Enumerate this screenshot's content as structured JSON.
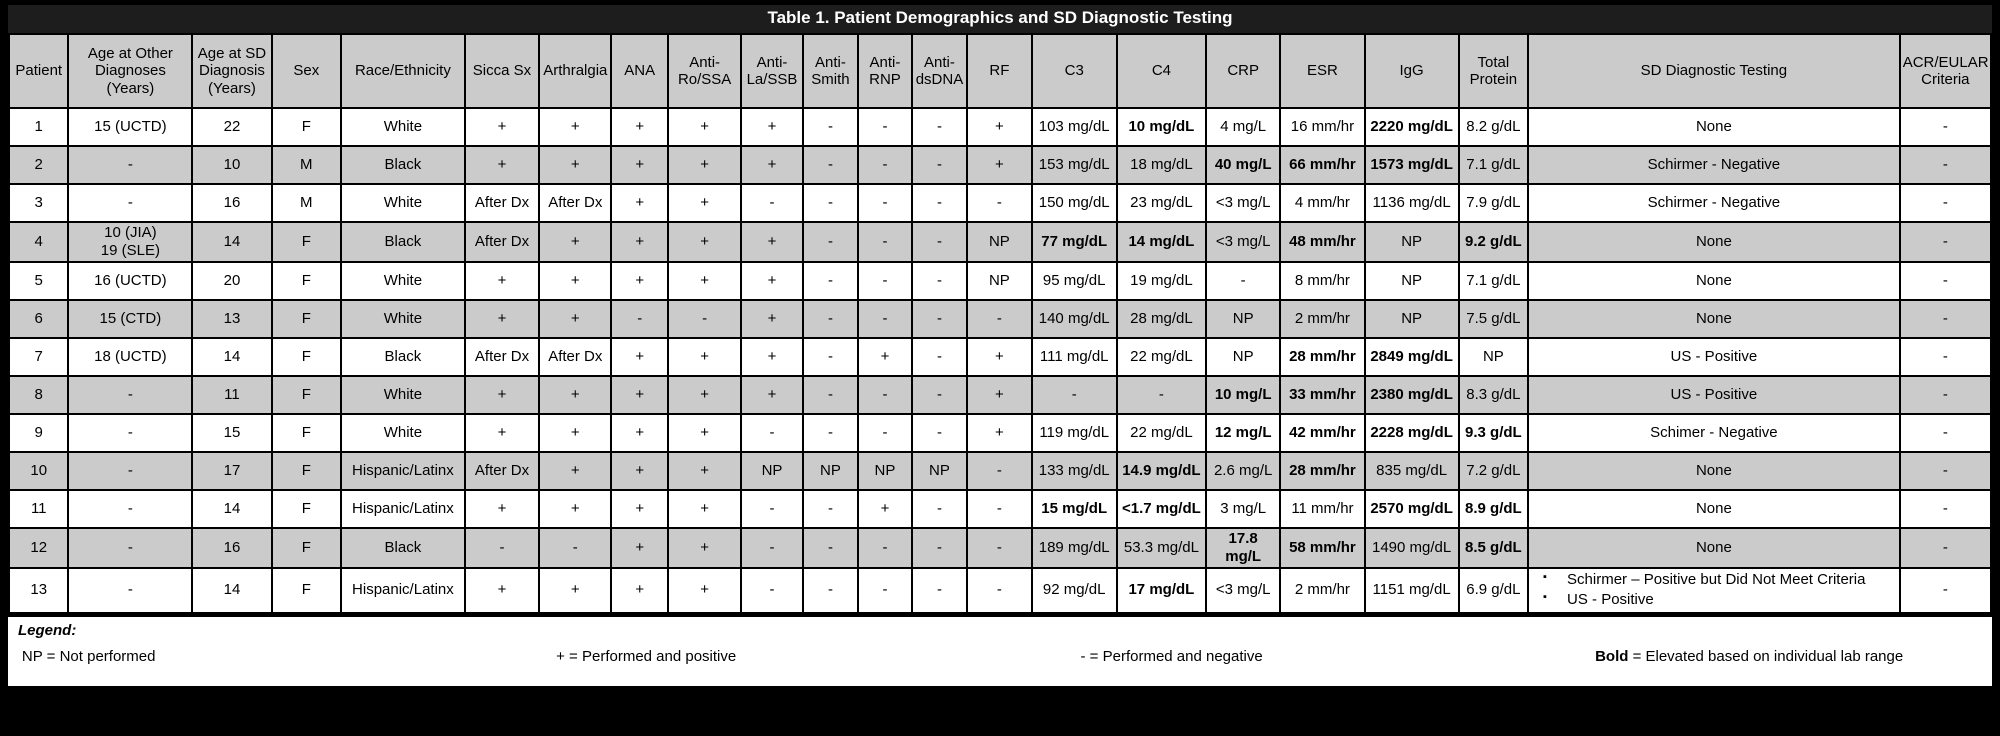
{
  "title": "Table 1. Patient Demographics and SD Diagnostic Testing",
  "table": {
    "columns": [
      {
        "key": "patient",
        "label": "Patient"
      },
      {
        "key": "age-at-other-diagnoses",
        "label": "Age at Other Diagnoses (Years)"
      },
      {
        "key": "age-at-sd-diagnosis",
        "label": "Age at SD Diagnosis (Years)"
      },
      {
        "key": "sex",
        "label": "Sex"
      },
      {
        "key": "race-ethnicity",
        "label": "Race/Ethnicity"
      },
      {
        "key": "sicca-sx",
        "label": "Sicca Sx"
      },
      {
        "key": "arthralgia",
        "label": "Arthralgia"
      },
      {
        "key": "ana",
        "label": "ANA"
      },
      {
        "key": "anti-ro-ssa",
        "label": "Anti-Ro/SSA"
      },
      {
        "key": "anti-la-ssb",
        "label": "Anti-La/SSB"
      },
      {
        "key": "anti-smith",
        "label": "Anti-Smith"
      },
      {
        "key": "anti-rnp",
        "label": "Anti-RNP"
      },
      {
        "key": "anti-dsdna",
        "label": "Anti-dsDNA"
      },
      {
        "key": "rf",
        "label": "RF"
      },
      {
        "key": "c3",
        "label": "C3"
      },
      {
        "key": "c4",
        "label": "C4"
      },
      {
        "key": "crp",
        "label": "CRP"
      },
      {
        "key": "esr",
        "label": "ESR"
      },
      {
        "key": "igg",
        "label": "IgG"
      },
      {
        "key": "total-protein",
        "label": "Total Protein"
      },
      {
        "key": "sd-diagnostic-testing",
        "label": "SD Diagnostic Testing"
      },
      {
        "key": "acr-eular-criteria",
        "label": "ACR/EULAR Criteria"
      }
    ],
    "rows": [
      {
        "shaded": false,
        "cells": [
          "1",
          "15 (UCTD)",
          "22",
          "F",
          "White",
          "+",
          "+",
          "+",
          "+",
          "+",
          "-",
          "-",
          "-",
          "+",
          "103 mg/dL",
          {
            "text": "10 mg/dL",
            "bold": true
          },
          "4 mg/L",
          "16 mm/hr",
          {
            "text": "2220 mg/dL",
            "bold": true
          },
          "8.2 g/dL",
          "None",
          "-"
        ]
      },
      {
        "shaded": true,
        "cells": [
          "2",
          "-",
          "10",
          "M",
          "Black",
          "+",
          "+",
          "+",
          "+",
          "+",
          "-",
          "-",
          "-",
          "+",
          "153 mg/dL",
          "18 mg/dL",
          {
            "text": "40 mg/L",
            "bold": true
          },
          {
            "text": "66 mm/hr",
            "bold": true
          },
          {
            "text": "1573 mg/dL",
            "bold": true
          },
          "7.1 g/dL",
          "Schirmer - Negative",
          "-"
        ]
      },
      {
        "shaded": false,
        "cells": [
          "3",
          "-",
          "16",
          "M",
          "White",
          "After Dx",
          "After Dx",
          "+",
          "+",
          "-",
          "-",
          "-",
          "-",
          "-",
          "150 mg/dL",
          "23 mg/dL",
          "<3 mg/L",
          "4 mm/hr",
          "1136 mg/dL",
          "7.9 g/dL",
          "Schirmer - Negative",
          "-"
        ]
      },
      {
        "shaded": true,
        "cells": [
          "4",
          {
            "lines": [
              "10 (JIA)",
              "19 (SLE)"
            ]
          },
          "14",
          "F",
          "Black",
          "After Dx",
          "+",
          "+",
          "+",
          "+",
          "-",
          "-",
          "-",
          "NP",
          {
            "text": "77 mg/dL",
            "bold": true
          },
          {
            "text": "14 mg/dL",
            "bold": true
          },
          "<3 mg/L",
          {
            "text": "48 mm/hr",
            "bold": true
          },
          "NP",
          {
            "text": "9.2 g/dL",
            "bold": true
          },
          "None",
          "-"
        ]
      },
      {
        "shaded": false,
        "cells": [
          "5",
          "16 (UCTD)",
          "20",
          "F",
          "White",
          "+",
          "+",
          "+",
          "+",
          "+",
          "-",
          "-",
          "-",
          "NP",
          "95 mg/dL",
          "19 mg/dL",
          "-",
          "8 mm/hr",
          "NP",
          "7.1 g/dL",
          "None",
          "-"
        ]
      },
      {
        "shaded": true,
        "cells": [
          "6",
          "15 (CTD)",
          "13",
          "F",
          "White",
          "+",
          "+",
          "-",
          "-",
          "+",
          "-",
          "-",
          "-",
          "-",
          "140 mg/dL",
          "28 mg/dL",
          "NP",
          "2 mm/hr",
          "NP",
          "7.5 g/dL",
          "None",
          "-"
        ]
      },
      {
        "shaded": false,
        "cells": [
          "7",
          "18 (UCTD)",
          "14",
          "F",
          "Black",
          "After Dx",
          "After Dx",
          "+",
          "+",
          "+",
          "-",
          "+",
          "-",
          "+",
          "111 mg/dL",
          "22 mg/dL",
          "NP",
          {
            "text": "28 mm/hr",
            "bold": true
          },
          {
            "text": "2849 mg/dL",
            "bold": true
          },
          "NP",
          "US - Positive",
          "-"
        ]
      },
      {
        "shaded": true,
        "cells": [
          "8",
          "-",
          "11",
          "F",
          "White",
          "+",
          "+",
          "+",
          "+",
          "+",
          "-",
          "-",
          "-",
          "+",
          "-",
          "-",
          {
            "text": "10 mg/L",
            "bold": true
          },
          {
            "text": "33 mm/hr",
            "bold": true
          },
          {
            "text": "2380 mg/dL",
            "bold": true
          },
          "8.3 g/dL",
          "US - Positive",
          "-"
        ]
      },
      {
        "shaded": false,
        "cells": [
          "9",
          "-",
          "15",
          "F",
          "White",
          "+",
          "+",
          "+",
          "+",
          "-",
          "-",
          "-",
          "-",
          "+",
          "119 mg/dL",
          "22 mg/dL",
          {
            "text": "12 mg/L",
            "bold": true
          },
          {
            "text": "42 mm/hr",
            "bold": true
          },
          {
            "text": "2228 mg/dL",
            "bold": true
          },
          {
            "text": "9.3 g/dL",
            "bold": true
          },
          "Schimer - Negative",
          "-"
        ]
      },
      {
        "shaded": true,
        "cells": [
          "10",
          "-",
          "17",
          "F",
          "Hispanic/Latinx",
          "After Dx",
          "+",
          "+",
          "+",
          "NP",
          "NP",
          "NP",
          "NP",
          "-",
          "133 mg/dL",
          {
            "text": "14.9 mg/dL",
            "bold": true
          },
          "2.6 mg/L",
          {
            "text": "28 mm/hr",
            "bold": true
          },
          "835 mg/dL",
          "7.2 g/dL",
          "None",
          "-"
        ]
      },
      {
        "shaded": false,
        "cells": [
          "11",
          "-",
          "14",
          "F",
          "Hispanic/Latinx",
          "+",
          "+",
          "+",
          "+",
          "-",
          "-",
          "+",
          "-",
          "-",
          {
            "text": "15 mg/dL",
            "bold": true
          },
          {
            "text": "<1.7 mg/dL",
            "bold": true
          },
          "3 mg/L",
          "11 mm/hr",
          {
            "text": "2570 mg/dL",
            "bold": true
          },
          {
            "text": "8.9 g/dL",
            "bold": true
          },
          "None",
          "-"
        ]
      },
      {
        "shaded": true,
        "cells": [
          "12",
          "-",
          "16",
          "F",
          "Black",
          "-",
          "-",
          "+",
          "+",
          "-",
          "-",
          "-",
          "-",
          "-",
          "189 mg/dL",
          "53.3 mg/dL",
          {
            "text": "17.8 mg/L",
            "bold": true
          },
          {
            "text": "58 mm/hr",
            "bold": true
          },
          "1490 mg/dL",
          {
            "text": "8.5 g/dL",
            "bold": true
          },
          "None",
          "-"
        ]
      },
      {
        "shaded": false,
        "cells": [
          "13",
          "-",
          "14",
          "F",
          "Hispanic/Latinx",
          "+",
          "+",
          "+",
          "+",
          "-",
          "-",
          "-",
          "-",
          "-",
          "92 mg/dL",
          {
            "text": "17 mg/dL",
            "bold": true
          },
          "<3 mg/L",
          "2 mm/hr",
          "1151 mg/dL",
          "6.9 g/dL",
          {
            "bullets": [
              "Schirmer – Positive but Did Not Meet Criteria",
              "US - Positive"
            ]
          },
          "-"
        ]
      }
    ]
  },
  "legend": {
    "title": "Legend:",
    "separator": " = ",
    "items": [
      {
        "term": "NP",
        "definition": "Not performed",
        "bold_term": false
      },
      {
        "term": "+",
        "definition": "Performed and positive",
        "bold_term": false
      },
      {
        "term": "-",
        "definition": "Performed and negative",
        "bold_term": false
      },
      {
        "term": "Bold",
        "definition": "Elevated based on individual lab range",
        "bold_term": true
      }
    ]
  },
  "colors": {
    "shaded_row": "#cbcbcb",
    "title_bar": "#1d1d1d",
    "border": "#000000"
  }
}
